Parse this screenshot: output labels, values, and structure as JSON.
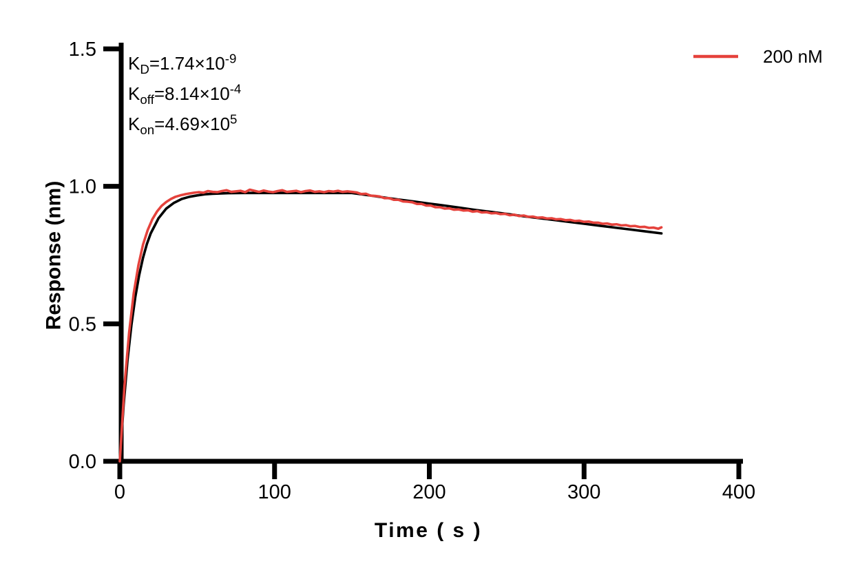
{
  "figure": {
    "background": "#ffffff"
  },
  "colors": {
    "axis": "#000000",
    "accent_red": "#E5423C",
    "fit_black": "#000000"
  },
  "kinetics_annotation": {
    "lines": [
      {
        "base": "K",
        "sub": "D",
        "rest": "=1.74×10",
        "sup": "-9"
      },
      {
        "base": "K",
        "sub": "off",
        "rest": "=8.14×10",
        "sup": "-4"
      },
      {
        "base": "K",
        "sub": "on",
        "rest": "=4.69×10",
        "sup": "5"
      }
    ]
  },
  "chart_data": {
    "type": "line",
    "title": "",
    "xlabel": "Time ( s )",
    "ylabel": "Response (nm)",
    "xlim": [
      0,
      400
    ],
    "ylim": [
      0,
      1.5
    ],
    "x_ticks": [
      0,
      100,
      200,
      300,
      400
    ],
    "y_ticks": [
      "0.0",
      "0.5",
      "1.0",
      "1.5"
    ],
    "grid": false,
    "legend": {
      "position": "top-right",
      "entries": [
        {
          "label": "200 nM",
          "color": "#E5423C"
        }
      ]
    },
    "annotations": {
      "KD": "1.74×10^-9",
      "Koff": "8.14×10^-4",
      "Kon": "4.69×10^5"
    },
    "phases": {
      "association_s": [
        0,
        150
      ],
      "dissociation_s": [
        150,
        350
      ]
    },
    "series": [
      {
        "id": "fit-curve",
        "name": "Fitted curve",
        "color": "#000000",
        "width": 3.6,
        "points": [
          [
            0,
            0
          ],
          [
            2.5,
            0.206
          ],
          [
            5,
            0.368
          ],
          [
            7.5,
            0.496
          ],
          [
            10,
            0.597
          ],
          [
            12.5,
            0.677
          ],
          [
            15,
            0.74
          ],
          [
            17.5,
            0.79
          ],
          [
            20,
            0.829
          ],
          [
            25,
            0.884
          ],
          [
            30,
            0.919
          ],
          [
            35,
            0.94
          ],
          [
            40,
            0.954
          ],
          [
            45,
            0.962
          ],
          [
            50,
            0.967
          ],
          [
            55,
            0.971
          ],
          [
            60,
            0.973
          ],
          [
            70,
            0.975
          ],
          [
            80,
            0.976
          ],
          [
            90,
            0.976
          ],
          [
            100,
            0.976
          ],
          [
            120,
            0.976
          ],
          [
            150,
            0.976
          ],
          [
            160,
            0.968
          ],
          [
            170,
            0.96
          ],
          [
            180,
            0.952
          ],
          [
            190,
            0.945
          ],
          [
            200,
            0.937
          ],
          [
            210,
            0.93
          ],
          [
            220,
            0.922
          ],
          [
            230,
            0.914
          ],
          [
            240,
            0.907
          ],
          [
            250,
            0.9
          ],
          [
            260,
            0.892
          ],
          [
            270,
            0.885
          ],
          [
            280,
            0.878
          ],
          [
            290,
            0.871
          ],
          [
            300,
            0.864
          ],
          [
            310,
            0.857
          ],
          [
            320,
            0.85
          ],
          [
            330,
            0.843
          ],
          [
            340,
            0.836
          ],
          [
            350,
            0.829
          ]
        ]
      },
      {
        "id": "measured-curve",
        "name": "200 nM measured",
        "color": "#E5423C",
        "width": 3.6,
        "points": [
          [
            0,
            0
          ],
          [
            3,
            0.272
          ],
          [
            6,
            0.468
          ],
          [
            9,
            0.611
          ],
          [
            12,
            0.713
          ],
          [
            15,
            0.788
          ],
          [
            18,
            0.841
          ],
          [
            21,
            0.88
          ],
          [
            24,
            0.908
          ],
          [
            27,
            0.929
          ],
          [
            30,
            0.943
          ],
          [
            33,
            0.954
          ],
          [
            36,
            0.962
          ],
          [
            39,
            0.967
          ],
          [
            42,
            0.971
          ],
          [
            45,
            0.974
          ],
          [
            48,
            0.977
          ],
          [
            51,
            0.979
          ],
          [
            54,
            0.977
          ],
          [
            57,
            0.983
          ],
          [
            60,
            0.98
          ],
          [
            63,
            0.979
          ],
          [
            66,
            0.983
          ],
          [
            69,
            0.986
          ],
          [
            72,
            0.98
          ],
          [
            75,
            0.982
          ],
          [
            78,
            0.984
          ],
          [
            81,
            0.979
          ],
          [
            84,
            0.988
          ],
          [
            87,
            0.984
          ],
          [
            90,
            0.98
          ],
          [
            93,
            0.985
          ],
          [
            96,
            0.981
          ],
          [
            99,
            0.979
          ],
          [
            102,
            0.983
          ],
          [
            105,
            0.986
          ],
          [
            108,
            0.98
          ],
          [
            111,
            0.982
          ],
          [
            114,
            0.984
          ],
          [
            117,
            0.979
          ],
          [
            120,
            0.983
          ],
          [
            123,
            0.985
          ],
          [
            126,
            0.98
          ],
          [
            129,
            0.982
          ],
          [
            132,
            0.979
          ],
          [
            135,
            0.983
          ],
          [
            138,
            0.981
          ],
          [
            141,
            0.984
          ],
          [
            144,
            0.98
          ],
          [
            147,
            0.982
          ],
          [
            150,
            0.98
          ],
          [
            153,
            0.978
          ],
          [
            156,
            0.972
          ],
          [
            159,
            0.973
          ],
          [
            162,
            0.966
          ],
          [
            165,
            0.965
          ],
          [
            168,
            0.963
          ],
          [
            171,
            0.957
          ],
          [
            174,
            0.957
          ],
          [
            177,
            0.951
          ],
          [
            180,
            0.951
          ],
          [
            183,
            0.945
          ],
          [
            186,
            0.944
          ],
          [
            189,
            0.942
          ],
          [
            192,
            0.936
          ],
          [
            195,
            0.936
          ],
          [
            198,
            0.93
          ],
          [
            201,
            0.93
          ],
          [
            204,
            0.924
          ],
          [
            207,
            0.924
          ],
          [
            210,
            0.919
          ],
          [
            213,
            0.92
          ],
          [
            216,
            0.915
          ],
          [
            219,
            0.916
          ],
          [
            222,
            0.912
          ],
          [
            225,
            0.913
          ],
          [
            228,
            0.908
          ],
          [
            231,
            0.91
          ],
          [
            234,
            0.905
          ],
          [
            237,
            0.906
          ],
          [
            240,
            0.902
          ],
          [
            243,
            0.903
          ],
          [
            246,
            0.899
          ],
          [
            249,
            0.9
          ],
          [
            252,
            0.895
          ],
          [
            255,
            0.897
          ],
          [
            258,
            0.892
          ],
          [
            261,
            0.894
          ],
          [
            264,
            0.889
          ],
          [
            267,
            0.89
          ],
          [
            270,
            0.886
          ],
          [
            273,
            0.887
          ],
          [
            276,
            0.883
          ],
          [
            279,
            0.884
          ],
          [
            282,
            0.88
          ],
          [
            285,
            0.881
          ],
          [
            288,
            0.877
          ],
          [
            291,
            0.878
          ],
          [
            294,
            0.874
          ],
          [
            297,
            0.875
          ],
          [
            300,
            0.871
          ],
          [
            303,
            0.872
          ],
          [
            306,
            0.868
          ],
          [
            309,
            0.868
          ],
          [
            312,
            0.864
          ],
          [
            315,
            0.865
          ],
          [
            318,
            0.861
          ],
          [
            321,
            0.862
          ],
          [
            324,
            0.858
          ],
          [
            327,
            0.859
          ],
          [
            330,
            0.855
          ],
          [
            333,
            0.856
          ],
          [
            336,
            0.852
          ],
          [
            339,
            0.853
          ],
          [
            342,
            0.849
          ],
          [
            345,
            0.85
          ],
          [
            348,
            0.846
          ],
          [
            350,
            0.851
          ]
        ]
      }
    ]
  }
}
